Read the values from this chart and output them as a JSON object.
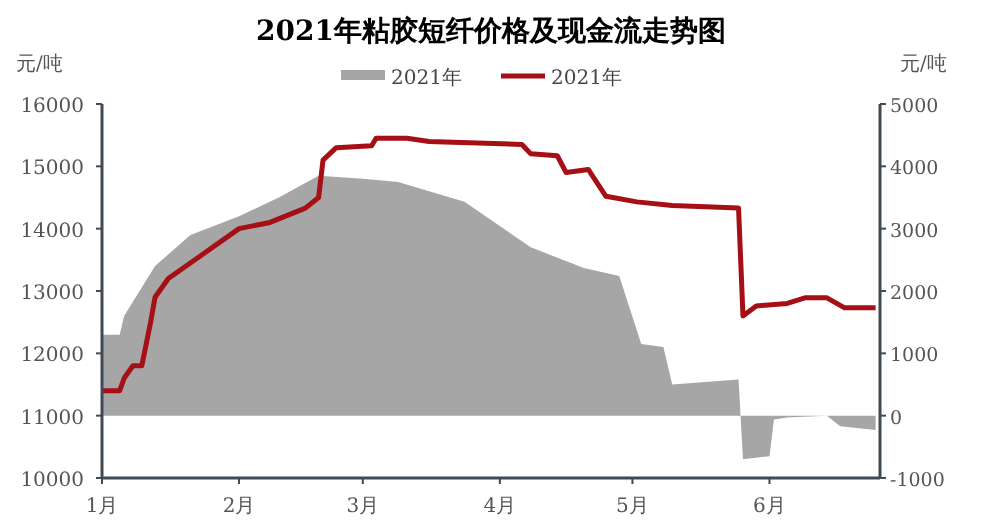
{
  "chart_data": {
    "type": "line",
    "title": "2021年粘胶短纤价格及现金流走势图",
    "ylabel": "元/吨",
    "y2label": "元/吨",
    "xlim": [
      "2021-01-01",
      "2021-06-26"
    ],
    "xticks": [
      {
        "value": "2021-01-01",
        "label": "1月"
      },
      {
        "value": "2021-02-01",
        "label": "2月"
      },
      {
        "value": "2021-03-01",
        "label": "3月"
      },
      {
        "value": "2021-04-01",
        "label": "4月"
      },
      {
        "value": "2021-05-01",
        "label": "5月"
      },
      {
        "value": "2021-06-01",
        "label": "6月"
      }
    ],
    "ylim": [
      10000,
      16000
    ],
    "yticks": [
      10000,
      11000,
      12000,
      13000,
      14000,
      15000,
      16000
    ],
    "y2lim": [
      -1000,
      5000
    ],
    "y2ticks": [
      -1000,
      0,
      1000,
      2000,
      3000,
      4000,
      5000
    ],
    "legend": "top",
    "grid": false,
    "series": [
      {
        "name": "2021年",
        "type": "area",
        "axis": "y2",
        "color": "#a6a6a6",
        "x": [
          "2021-01-01",
          "2021-01-05",
          "2021-01-06",
          "2021-01-13",
          "2021-01-21",
          "2021-02-01",
          "2021-02-10",
          "2021-02-19",
          "2021-03-01",
          "2021-03-09",
          "2021-03-24",
          "2021-04-08",
          "2021-04-20",
          "2021-04-28",
          "2021-05-03",
          "2021-05-08",
          "2021-05-10",
          "2021-05-25",
          "2021-05-26",
          "2021-06-01",
          "2021-06-02",
          "2021-06-05",
          "2021-06-14",
          "2021-06-17",
          "2021-06-25"
        ],
        "values": [
          1300,
          1300,
          1600,
          2400,
          2900,
          3200,
          3500,
          3850,
          3800,
          3750,
          3430,
          2700,
          2370,
          2240,
          1150,
          1100,
          500,
          580,
          -700,
          -650,
          -60,
          -30,
          0,
          -170,
          -230
        ]
      },
      {
        "name": "2021年",
        "color": "#a50f15",
        "x": [
          "2021-01-01",
          "2021-01-05",
          "2021-01-06",
          "2021-01-08",
          "2021-01-10",
          "2021-01-12",
          "2021-01-13",
          "2021-01-16",
          "2021-01-23",
          "2021-02-01",
          "2021-02-08",
          "2021-02-16",
          "2021-02-19",
          "2021-02-20",
          "2021-02-23",
          "2021-03-03",
          "2021-03-04",
          "2021-03-11",
          "2021-03-16",
          "2021-04-06",
          "2021-04-08",
          "2021-04-14",
          "2021-04-16",
          "2021-04-21",
          "2021-04-25",
          "2021-05-02",
          "2021-05-10",
          "2021-05-25",
          "2021-05-26",
          "2021-05-29",
          "2021-06-05",
          "2021-06-09",
          "2021-06-14",
          "2021-06-18",
          "2021-06-25"
        ],
        "values": [
          11400,
          11400,
          11600,
          11800,
          11800,
          12500,
          12900,
          13200,
          13550,
          14000,
          14100,
          14330,
          14500,
          15100,
          15300,
          15330,
          15450,
          15450,
          15400,
          15350,
          15200,
          15170,
          14900,
          14950,
          14520,
          14430,
          14370,
          14330,
          12600,
          12760,
          12800,
          12890,
          12890,
          12730,
          12730
        ]
      }
    ]
  }
}
